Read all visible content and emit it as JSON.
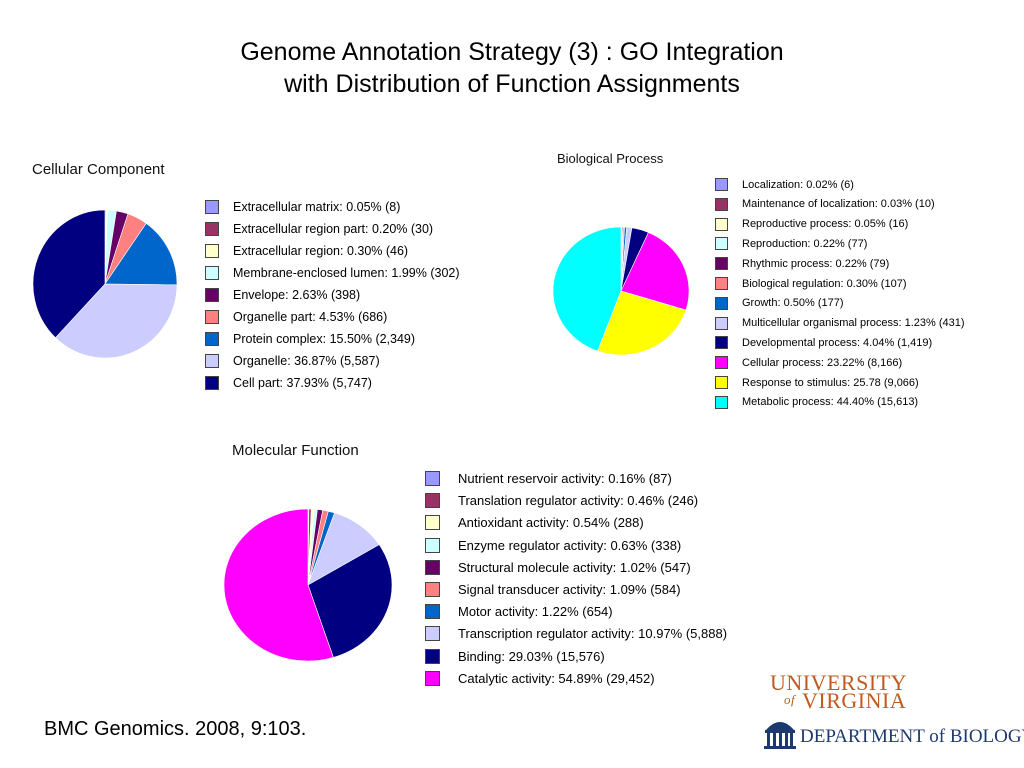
{
  "slide": {
    "title_line1": "Genome Annotation Strategy (3) : GO Integration",
    "title_line2": "with Distribution of Function Assignments",
    "citation": "BMC Genomics. 2008, 9:103."
  },
  "logo": {
    "university_line1": "UNIVERSITY",
    "university_of": "of",
    "university_line2": "VIRGINIA",
    "department_text": "DEPARTMENT of BIOLOGY",
    "university_color": "#c15a1f",
    "department_color": "#1d3a6e",
    "icon": "rotunda-icon"
  },
  "chart_data": [
    {
      "type": "pie",
      "title": "Cellular Component",
      "legend_position": "right",
      "start": "top",
      "direction": "clockwise",
      "slices": [
        {
          "label": "Extracellular matrix: 0.05% (8)",
          "value": 0.05,
          "count": 8,
          "color": "#9999ff"
        },
        {
          "label": "Extracellular region part: 0.20% (30)",
          "value": 0.2,
          "count": 30,
          "color": "#993366"
        },
        {
          "label": "Extracellular region: 0.30% (46)",
          "value": 0.3,
          "count": 46,
          "color": "#ffffcc"
        },
        {
          "label": "Membrane-enclosed lumen: 1.99% (302)",
          "value": 1.99,
          "count": 302,
          "color": "#ccffff"
        },
        {
          "label": "Envelope: 2.63% (398)",
          "value": 2.63,
          "count": 398,
          "color": "#660066"
        },
        {
          "label": "Organelle part: 4.53% (686)",
          "value": 4.53,
          "count": 686,
          "color": "#ff8080"
        },
        {
          "label": "Protein complex: 15.50% (2,349)",
          "value": 15.5,
          "count": 2349,
          "color": "#0066cc"
        },
        {
          "label": "Organelle: 36.87% (5,587)",
          "value": 36.87,
          "count": 5587,
          "color": "#ccccff"
        },
        {
          "label": "Cell part: 37.93% (5,747)",
          "value": 37.93,
          "count": 5747,
          "color": "#000080"
        }
      ]
    },
    {
      "type": "pie",
      "title": "Biological Process",
      "legend_position": "right",
      "start": "top",
      "direction": "clockwise",
      "slices": [
        {
          "label": "Localization: 0.02% (6)",
          "value": 0.02,
          "count": 6,
          "color": "#9999ff"
        },
        {
          "label": "Maintenance of localization: 0.03% (10)",
          "value": 0.03,
          "count": 10,
          "color": "#993366"
        },
        {
          "label": "Reproductive process: 0.05% (16)",
          "value": 0.05,
          "count": 16,
          "color": "#ffffcc"
        },
        {
          "label": "Reproduction: 0.22% (77)",
          "value": 0.22,
          "count": 77,
          "color": "#ccffff"
        },
        {
          "label": "Rhythmic process: 0.22% (79)",
          "value": 0.22,
          "count": 79,
          "color": "#660066"
        },
        {
          "label": "Biological regulation: 0.30% (107)",
          "value": 0.3,
          "count": 107,
          "color": "#ff8080"
        },
        {
          "label": "Growth: 0.50% (177)",
          "value": 0.5,
          "count": 177,
          "color": "#0066cc"
        },
        {
          "label": "Multicellular organismal process: 1.23% (431)",
          "value": 1.23,
          "count": 431,
          "color": "#ccccff"
        },
        {
          "label": "Developmental process: 4.04% (1,419)",
          "value": 4.04,
          "count": 1419,
          "color": "#000080"
        },
        {
          "label": "Cellular process: 23.22% (8,166)",
          "value": 23.22,
          "count": 8166,
          "color": "#ff00ff"
        },
        {
          "label": "Response to stimulus: 25.78 (9,066)",
          "value": 25.78,
          "count": 9066,
          "color": "#ffff00"
        },
        {
          "label": "Metabolic process: 44.40% (15,613)",
          "value": 44.4,
          "count": 15613,
          "color": "#00ffff"
        }
      ]
    },
    {
      "type": "pie",
      "title": "Molecular Function",
      "legend_position": "right",
      "start": "top",
      "direction": "clockwise",
      "slices": [
        {
          "label": "Nutrient reservoir activity: 0.16% (87)",
          "value": 0.16,
          "count": 87,
          "color": "#9999ff"
        },
        {
          "label": "Translation regulator activity: 0.46% (246)",
          "value": 0.46,
          "count": 246,
          "color": "#993366"
        },
        {
          "label": "Antioxidant activity: 0.54% (288)",
          "value": 0.54,
          "count": 288,
          "color": "#ffffcc"
        },
        {
          "label": "Enzyme regulator activity: 0.63% (338)",
          "value": 0.63,
          "count": 338,
          "color": "#ccffff"
        },
        {
          "label": "Structural molecule activity: 1.02% (547)",
          "value": 1.02,
          "count": 547,
          "color": "#660066"
        },
        {
          "label": "Signal transducer activity: 1.09% (584)",
          "value": 1.09,
          "count": 584,
          "color": "#ff8080"
        },
        {
          "label": "Motor activity: 1.22% (654)",
          "value": 1.22,
          "count": 654,
          "color": "#0066cc"
        },
        {
          "label": "Transcription regulator activity: 10.97% (5,888)",
          "value": 10.97,
          "count": 5888,
          "color": "#ccccff"
        },
        {
          "label": "Binding: 29.03% (15,576)",
          "value": 29.03,
          "count": 15576,
          "color": "#000080"
        },
        {
          "label": "Catalytic activity: 54.89% (29,452)",
          "value": 54.89,
          "count": 29452,
          "color": "#ff00ff"
        }
      ]
    }
  ]
}
